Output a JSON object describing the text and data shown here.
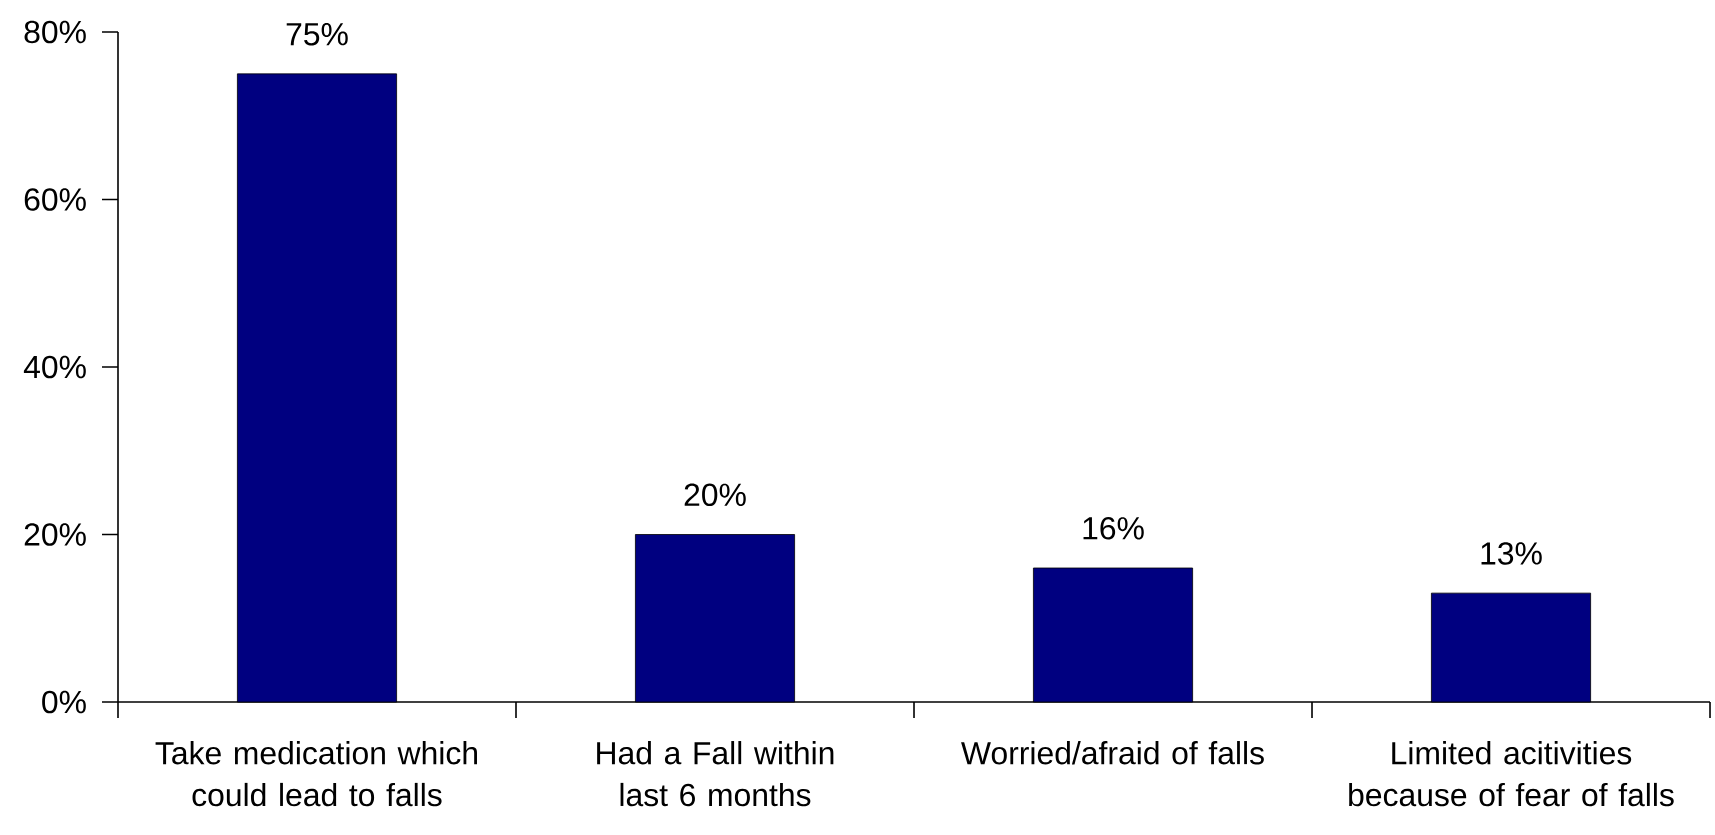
{
  "chart_data": {
    "type": "bar",
    "categories": [
      "Take medication which could lead to falls",
      "Had a Fall within last 6 months",
      "Worried/afraid of falls",
      "Limited acitivities because of fear of falls"
    ],
    "values": [
      75,
      20,
      16,
      13
    ],
    "value_labels": [
      "75%",
      "20%",
      "16%",
      "13%"
    ],
    "color": "#000080",
    "ylim": [
      0,
      80
    ],
    "yticks": [
      {
        "value": 0,
        "label": "0%"
      },
      {
        "value": 20,
        "label": "20%"
      },
      {
        "value": 40,
        "label": "40%"
      },
      {
        "value": 60,
        "label": "60%"
      },
      {
        "value": 80,
        "label": "80%"
      }
    ],
    "grid": false
  }
}
